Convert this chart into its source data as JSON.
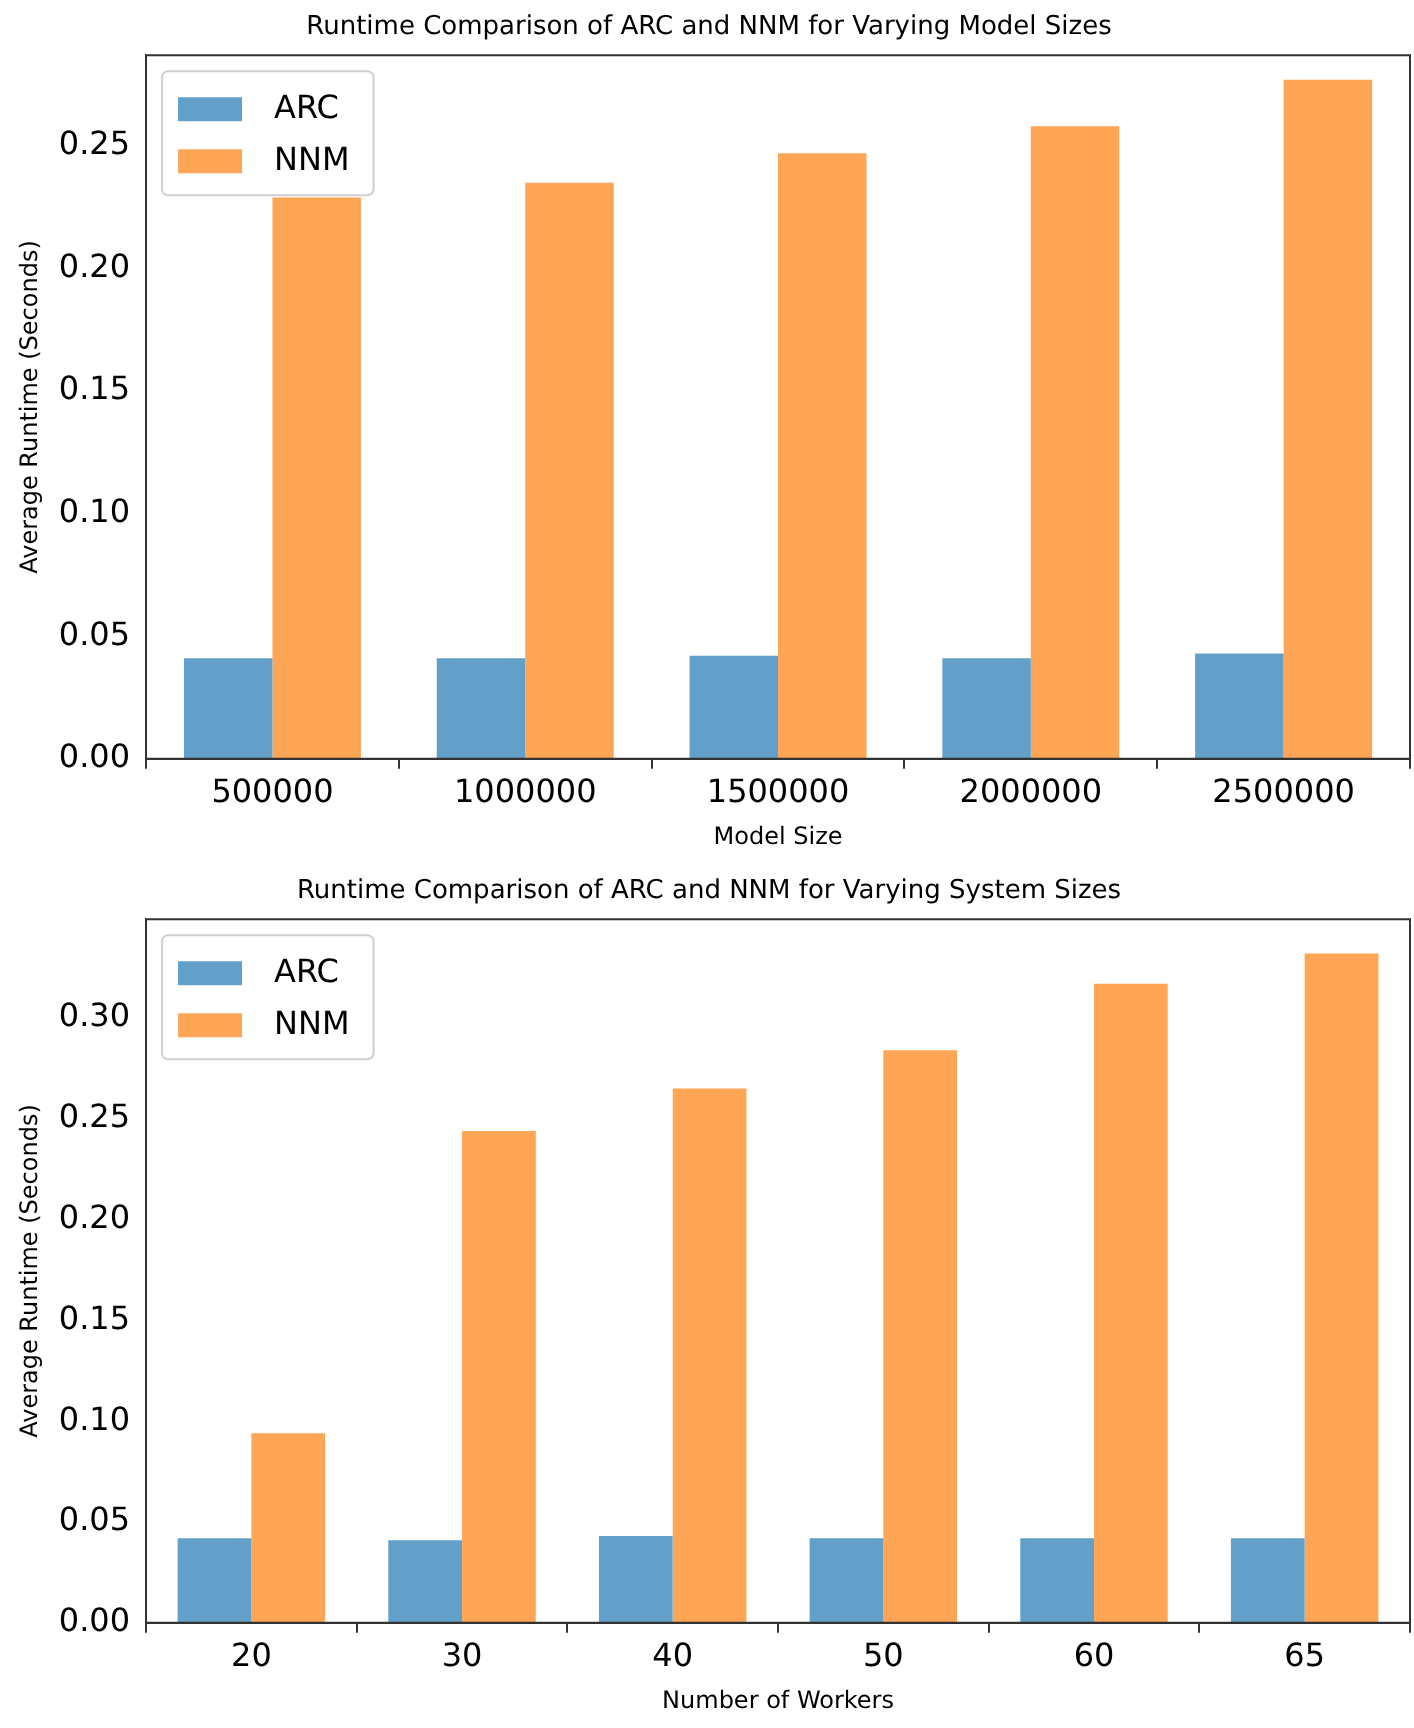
{
  "chart_data": [
    {
      "type": "bar",
      "title": "Runtime Comparison of ARC and NNM for Varying Model Sizes",
      "xlabel": "Model Size",
      "ylabel": "Average Runtime (Seconds)",
      "categories": [
        "500000",
        "1000000",
        "1500000",
        "2000000",
        "2500000"
      ],
      "series": [
        {
          "name": "ARC",
          "color": "#62a0ca",
          "values": [
            0.041,
            0.041,
            0.042,
            0.041,
            0.043
          ]
        },
        {
          "name": "NNM",
          "color": "#ffa556",
          "values": [
            0.229,
            0.235,
            0.247,
            0.258,
            0.277
          ]
        }
      ],
      "ylim": [
        0,
        0.287
      ],
      "yticks": [
        {
          "value": 0,
          "label": "0.00"
        },
        {
          "value": 0.05,
          "label": "0.05"
        },
        {
          "value": 0.1,
          "label": "0.10"
        },
        {
          "value": 0.15,
          "label": "0.15"
        },
        {
          "value": 0.2,
          "label": "0.20"
        },
        {
          "value": 0.25,
          "label": "0.25"
        }
      ],
      "grid": false,
      "legend": "top left"
    },
    {
      "type": "bar",
      "title": "Runtime Comparison of ARC and NNM for Varying System Sizes",
      "xlabel": "Number of Workers",
      "ylabel": "Average Runtime (Seconds)",
      "categories": [
        "20",
        "30",
        "40",
        "50",
        "60",
        "65"
      ],
      "series": [
        {
          "name": "ARC",
          "color": "#62a0ca",
          "values": [
            0.042,
            0.041,
            0.043,
            0.042,
            0.042,
            0.042
          ]
        },
        {
          "name": "NNM",
          "color": "#ffa556",
          "values": [
            0.094,
            0.244,
            0.265,
            0.284,
            0.317,
            0.332
          ]
        }
      ],
      "ylim": [
        0,
        0.349
      ],
      "yticks": [
        {
          "value": 0,
          "label": "0.00"
        },
        {
          "value": 0.05,
          "label": "0.05"
        },
        {
          "value": 0.1,
          "label": "0.10"
        },
        {
          "value": 0.15,
          "label": "0.15"
        },
        {
          "value": 0.2,
          "label": "0.20"
        },
        {
          "value": 0.25,
          "label": "0.25"
        },
        {
          "value": 0.3,
          "label": "0.30"
        }
      ],
      "grid": false,
      "legend": "top left"
    }
  ]
}
